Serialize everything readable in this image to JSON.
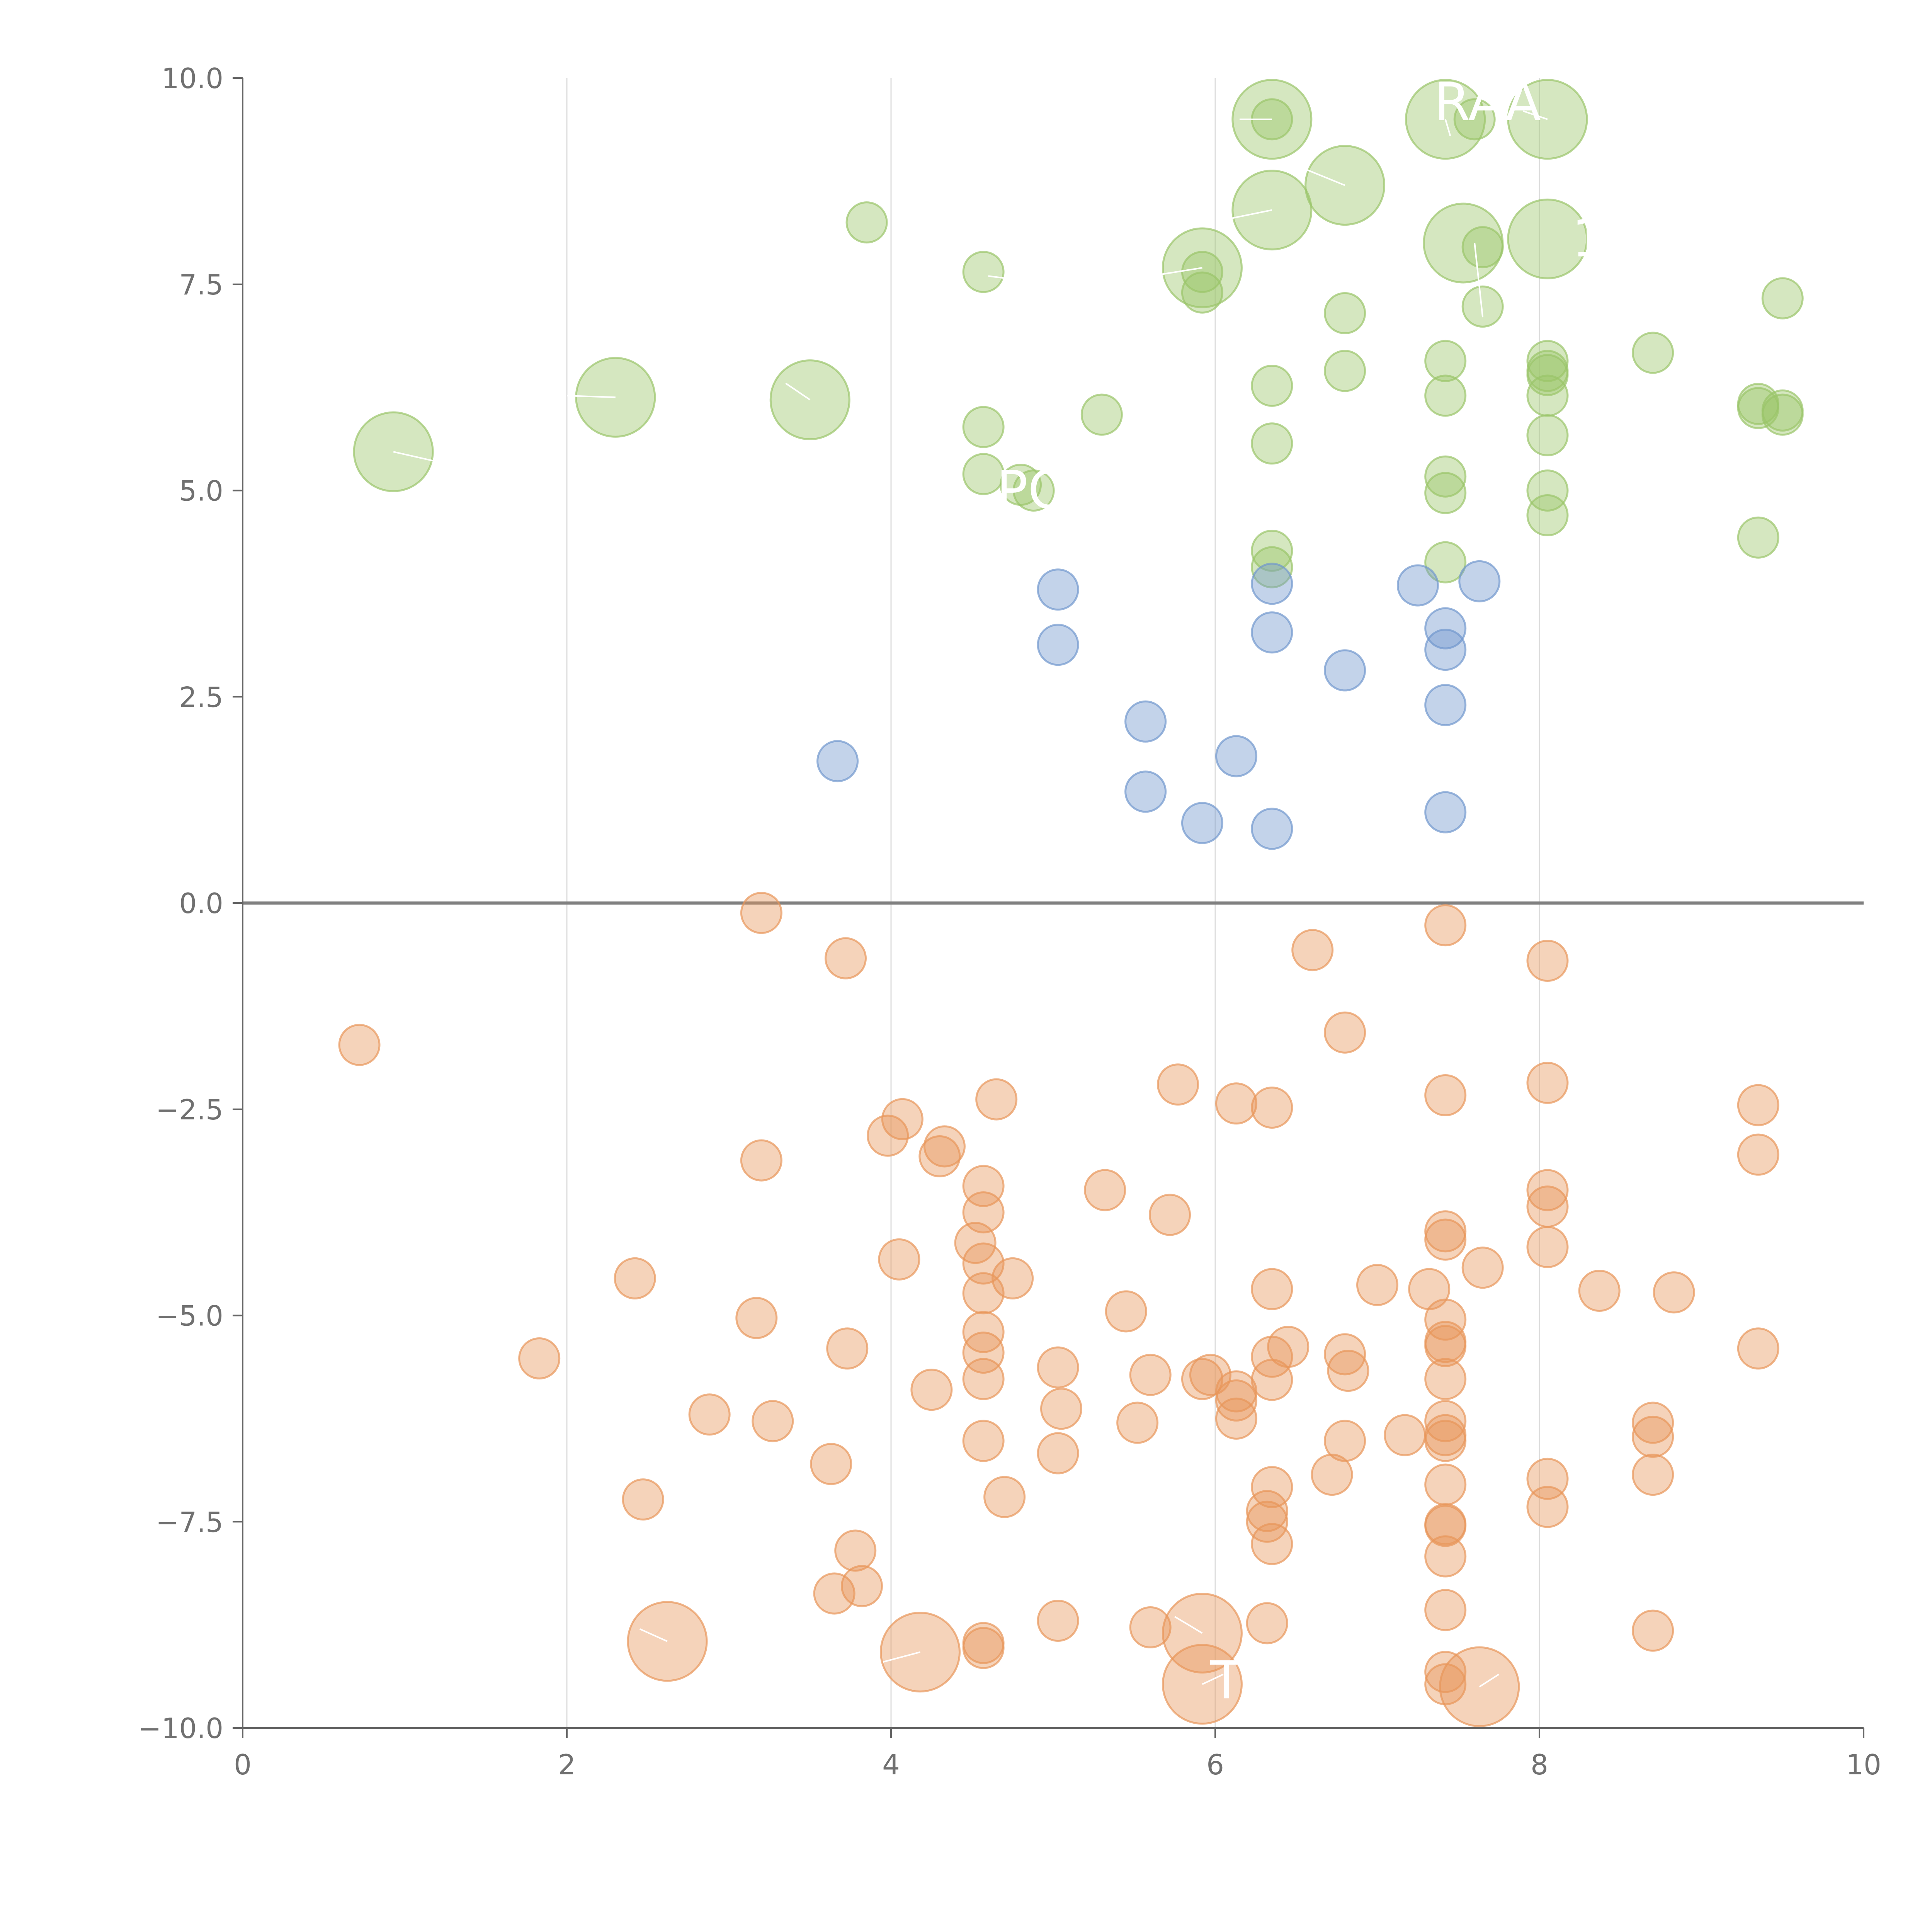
{
  "chart_data": {
    "type": "scatter",
    "title": "",
    "xlabel": "",
    "ylabel": "",
    "xlim": [
      0,
      10
    ],
    "ylim": [
      -10,
      10
    ],
    "x_ticks": [
      "0",
      "2",
      "4",
      "6",
      "8",
      "10"
    ],
    "y_ticks": [
      "−10.0",
      "−7.5",
      "−5.0",
      "−2.5",
      "0.0",
      "2.5",
      "5.0",
      "7.5",
      "10.0"
    ],
    "x_grid": [
      2,
      4,
      6,
      8
    ],
    "zero_line": 0,
    "colors": {
      "green": "#9ac569",
      "blue": "#7097cd",
      "orange": "#e8955a"
    },
    "series": [
      {
        "color": "green",
        "points": [
          [
            6.35,
            9.5,
            3
          ],
          [
            6.35,
            9.5,
            1
          ],
          [
            7.42,
            9.5,
            3
          ],
          [
            7.6,
            9.5,
            1
          ],
          [
            8.05,
            9.5,
            3
          ],
          [
            6.8,
            8.7,
            3
          ],
          [
            3.85,
            8.25,
            1
          ],
          [
            6.35,
            8.4,
            3
          ],
          [
            8.05,
            8.05,
            3
          ],
          [
            7.53,
            8.0,
            3
          ],
          [
            7.65,
            7.95,
            1
          ],
          [
            4.57,
            7.65,
            1
          ],
          [
            5.92,
            7.7,
            3
          ],
          [
            5.92,
            7.65,
            1
          ],
          [
            5.92,
            7.4,
            1
          ],
          [
            9.5,
            7.33,
            1
          ],
          [
            7.65,
            7.23,
            1
          ],
          [
            6.8,
            7.15,
            1
          ],
          [
            8.7,
            6.67,
            1
          ],
          [
            7.42,
            6.57,
            1
          ],
          [
            8.05,
            6.57,
            1
          ],
          [
            8.05,
            6.45,
            1
          ],
          [
            8.05,
            6.4,
            1
          ],
          [
            6.8,
            6.45,
            1
          ],
          [
            6.35,
            6.27,
            1
          ],
          [
            2.3,
            6.13,
            3
          ],
          [
            3.5,
            6.1,
            3
          ],
          [
            7.42,
            6.15,
            1
          ],
          [
            8.05,
            6.15,
            1
          ],
          [
            9.35,
            6.05,
            1
          ],
          [
            9.35,
            6.0,
            1
          ],
          [
            9.5,
            5.97,
            1
          ],
          [
            9.5,
            5.92,
            1
          ],
          [
            5.3,
            5.92,
            1
          ],
          [
            4.57,
            5.77,
            1
          ],
          [
            8.05,
            5.67,
            1
          ],
          [
            6.35,
            5.57,
            1
          ],
          [
            0.93,
            5.47,
            3
          ],
          [
            4.57,
            5.2,
            1
          ],
          [
            7.42,
            5.17,
            1
          ],
          [
            4.8,
            5.07,
            1
          ],
          [
            4.88,
            5.0,
            1
          ],
          [
            8.05,
            5.0,
            1
          ],
          [
            7.42,
            4.97,
            1
          ],
          [
            8.05,
            4.7,
            1
          ],
          [
            9.35,
            4.43,
            1
          ],
          [
            6.35,
            4.27,
            1
          ],
          [
            7.42,
            4.13,
            1
          ],
          [
            6.35,
            4.07,
            1
          ]
        ]
      },
      {
        "color": "blue",
        "points": [
          [
            6.35,
            3.87,
            1
          ],
          [
            7.25,
            3.85,
            1
          ],
          [
            7.63,
            3.9,
            1
          ],
          [
            5.03,
            3.8,
            1
          ],
          [
            7.42,
            3.33,
            1
          ],
          [
            6.35,
            3.28,
            1
          ],
          [
            5.03,
            3.13,
            1
          ],
          [
            7.42,
            3.07,
            1
          ],
          [
            6.8,
            2.82,
            1
          ],
          [
            7.42,
            2.4,
            1
          ],
          [
            5.57,
            2.2,
            1
          ],
          [
            6.13,
            1.78,
            1
          ],
          [
            3.67,
            1.72,
            1
          ],
          [
            5.57,
            1.35,
            1
          ],
          [
            7.42,
            1.1,
            1
          ],
          [
            5.92,
            0.97,
            1
          ],
          [
            6.35,
            0.9,
            1
          ]
        ]
      },
      {
        "color": "orange",
        "points": [
          [
            3.2,
            -0.12,
            1
          ],
          [
            7.42,
            -0.27,
            1
          ],
          [
            6.6,
            -0.57,
            1
          ],
          [
            3.72,
            -0.67,
            1
          ],
          [
            8.05,
            -0.7,
            1
          ],
          [
            6.8,
            -1.57,
            1
          ],
          [
            0.72,
            -1.72,
            1
          ],
          [
            5.77,
            -2.2,
            1
          ],
          [
            8.05,
            -2.18,
            1
          ],
          [
            7.42,
            -2.33,
            1
          ],
          [
            4.65,
            -2.38,
            1
          ],
          [
            6.13,
            -2.43,
            1
          ],
          [
            6.35,
            -2.48,
            1
          ],
          [
            9.35,
            -2.45,
            1
          ],
          [
            4.07,
            -2.62,
            1
          ],
          [
            3.98,
            -2.82,
            1
          ],
          [
            4.33,
            -2.95,
            1
          ],
          [
            4.3,
            -3.07,
            1
          ],
          [
            3.2,
            -3.12,
            1
          ],
          [
            9.35,
            -3.05,
            1
          ],
          [
            4.57,
            -3.43,
            1
          ],
          [
            5.32,
            -3.48,
            1
          ],
          [
            8.05,
            -3.48,
            1
          ],
          [
            4.57,
            -3.75,
            1
          ],
          [
            8.05,
            -3.68,
            1
          ],
          [
            5.72,
            -3.78,
            1
          ],
          [
            7.42,
            -3.98,
            1
          ],
          [
            7.42,
            -4.08,
            1
          ],
          [
            4.52,
            -4.12,
            1
          ],
          [
            8.05,
            -4.17,
            1
          ],
          [
            4.05,
            -4.32,
            1
          ],
          [
            4.57,
            -4.37,
            1
          ],
          [
            7.65,
            -4.42,
            1
          ],
          [
            2.42,
            -4.55,
            1
          ],
          [
            4.75,
            -4.55,
            1
          ],
          [
            7.0,
            -4.63,
            1
          ],
          [
            6.35,
            -4.68,
            1
          ],
          [
            7.32,
            -4.68,
            1
          ],
          [
            8.37,
            -4.7,
            1
          ],
          [
            8.83,
            -4.72,
            1
          ],
          [
            4.57,
            -4.73,
            1
          ],
          [
            5.45,
            -4.95,
            1
          ],
          [
            3.17,
            -5.03,
            1
          ],
          [
            7.42,
            -5.05,
            1
          ],
          [
            4.57,
            -5.2,
            1
          ],
          [
            7.42,
            -5.32,
            1
          ],
          [
            7.42,
            -5.37,
            1
          ],
          [
            6.45,
            -5.38,
            1
          ],
          [
            3.73,
            -5.4,
            1
          ],
          [
            9.35,
            -5.4,
            1
          ],
          [
            4.57,
            -5.45,
            1
          ],
          [
            6.8,
            -5.47,
            1
          ],
          [
            6.35,
            -5.5,
            1
          ],
          [
            1.83,
            -5.52,
            1
          ],
          [
            5.03,
            -5.63,
            1
          ],
          [
            6.82,
            -5.67,
            1
          ],
          [
            5.6,
            -5.72,
            1
          ],
          [
            5.97,
            -5.72,
            1
          ],
          [
            5.92,
            -5.77,
            1
          ],
          [
            4.57,
            -5.77,
            1
          ],
          [
            7.42,
            -5.77,
            1
          ],
          [
            6.35,
            -5.78,
            1
          ],
          [
            4.25,
            -5.9,
            1
          ],
          [
            6.13,
            -5.92,
            1
          ],
          [
            6.13,
            -6.03,
            1
          ],
          [
            5.05,
            -6.13,
            1
          ],
          [
            2.88,
            -6.2,
            1
          ],
          [
            6.13,
            -6.25,
            1
          ],
          [
            3.27,
            -6.28,
            1
          ],
          [
            7.42,
            -6.28,
            1
          ],
          [
            5.52,
            -6.3,
            1
          ],
          [
            8.7,
            -6.3,
            1
          ],
          [
            7.42,
            -6.45,
            1
          ],
          [
            7.17,
            -6.45,
            1
          ],
          [
            8.7,
            -6.47,
            1
          ],
          [
            7.42,
            -6.52,
            1
          ],
          [
            4.57,
            -6.52,
            1
          ],
          [
            6.8,
            -6.52,
            1
          ],
          [
            5.03,
            -6.67,
            1
          ],
          [
            3.63,
            -6.8,
            1
          ],
          [
            6.72,
            -6.93,
            1
          ],
          [
            8.7,
            -6.93,
            1
          ],
          [
            8.05,
            -6.98,
            1
          ],
          [
            7.42,
            -7.05,
            1
          ],
          [
            6.35,
            -7.08,
            1
          ],
          [
            4.7,
            -7.2,
            1
          ],
          [
            2.47,
            -7.23,
            1
          ],
          [
            8.05,
            -7.32,
            1
          ],
          [
            6.32,
            -7.37,
            1
          ],
          [
            6.32,
            -7.5,
            1
          ],
          [
            7.42,
            -7.53,
            1
          ],
          [
            7.42,
            -7.55,
            1
          ],
          [
            6.35,
            -7.77,
            1
          ],
          [
            3.78,
            -7.85,
            1
          ],
          [
            7.42,
            -7.92,
            1
          ],
          [
            3.82,
            -8.28,
            1
          ],
          [
            3.65,
            -8.37,
            1
          ],
          [
            7.42,
            -8.57,
            1
          ],
          [
            5.03,
            -8.7,
            1
          ],
          [
            6.32,
            -8.73,
            1
          ],
          [
            5.6,
            -8.78,
            1
          ],
          [
            8.7,
            -8.82,
            1
          ],
          [
            5.92,
            -8.85,
            3
          ],
          [
            2.62,
            -8.95,
            3
          ],
          [
            4.57,
            -8.97,
            1
          ],
          [
            4.57,
            -9.03,
            1
          ],
          [
            4.18,
            -9.08,
            3
          ],
          [
            7.42,
            -9.32,
            1
          ],
          [
            7.42,
            -9.47,
            1
          ],
          [
            5.92,
            -9.47,
            3
          ],
          [
            7.63,
            -9.5,
            3
          ]
        ]
      }
    ],
    "annotations": [
      {
        "text": "RAA",
        "x": 7.35,
        "y": 9.7
      },
      {
        "text": "1",
        "x": 8.2,
        "y": 8.05
      },
      {
        "text": "PO",
        "x": 4.65,
        "y": 5.0
      },
      {
        "text": "T",
        "x": 5.97,
        "y": -9.43
      }
    ]
  }
}
